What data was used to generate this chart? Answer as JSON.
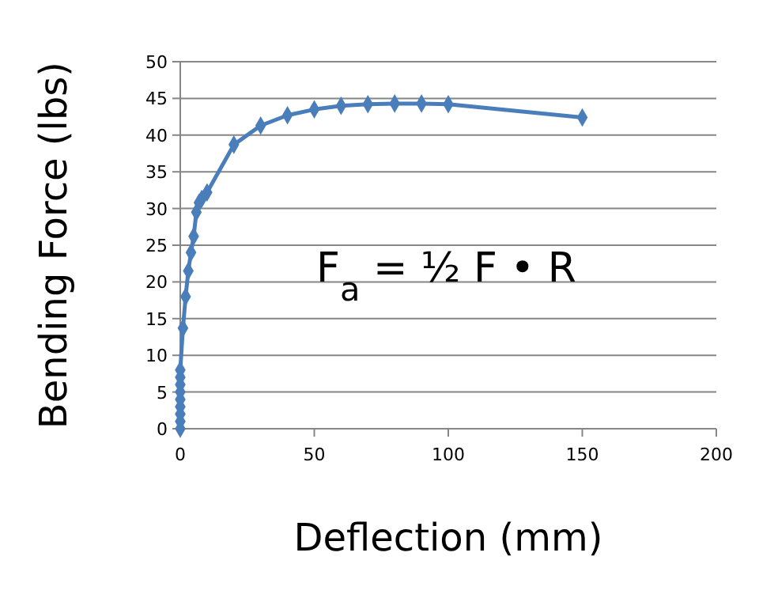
{
  "chart_data": {
    "type": "line",
    "xlabel": "Deflection (mm)",
    "ylabel": "Bending Force (lbs)",
    "annotations": [
      "F$_{a}$ = ½ F • R"
    ],
    "series": [
      {
        "color": "#4a7ebb",
        "x": [
          0,
          0,
          0,
          0,
          0,
          0,
          0,
          0,
          0,
          1,
          2,
          3,
          4,
          5,
          6,
          7,
          8,
          10,
          20,
          30,
          40,
          50,
          60,
          70,
          80,
          90,
          100,
          150
        ],
        "values": [
          0,
          1,
          2,
          3,
          4,
          5,
          6,
          7,
          8,
          13.7,
          18,
          21.5,
          24,
          26.2,
          29.5,
          30.8,
          31.3,
          32.2,
          38.7,
          41.3,
          42.7,
          43.5,
          44,
          44.2,
          44.3,
          44.3,
          44.2,
          42.4
        ]
      }
    ],
    "xlim": [
      0,
      200
    ],
    "xticks": [
      0,
      50,
      100,
      150,
      200
    ],
    "ylim": [
      0,
      50
    ],
    "yticks": [
      0,
      5,
      10,
      15,
      20,
      25,
      30,
      35,
      40,
      45,
      50
    ],
    "grid": "y",
    "marker": "diamond",
    "line_style": "solid"
  }
}
